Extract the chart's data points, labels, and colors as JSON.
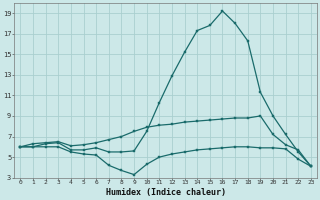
{
  "xlabel": "Humidex (Indice chaleur)",
  "background_color": "#cce8e8",
  "grid_color": "#aacfcf",
  "line_color": "#1a6b6b",
  "x": [
    0,
    1,
    2,
    3,
    4,
    5,
    6,
    7,
    8,
    9,
    10,
    11,
    12,
    13,
    14,
    15,
    16,
    17,
    18,
    19,
    20,
    21,
    22,
    23
  ],
  "line1": [
    6.0,
    6.0,
    6.0,
    6.0,
    5.5,
    5.3,
    5.2,
    4.2,
    3.7,
    3.3,
    4.3,
    5.0,
    5.3,
    5.5,
    5.7,
    5.8,
    5.9,
    6.0,
    6.0,
    5.9,
    5.9,
    5.8,
    4.8,
    4.1
  ],
  "line2": [
    6.0,
    6.3,
    6.4,
    6.5,
    6.1,
    6.2,
    6.4,
    6.7,
    7.0,
    7.5,
    7.9,
    8.1,
    8.2,
    8.4,
    8.5,
    8.6,
    8.7,
    8.8,
    8.8,
    9.0,
    7.2,
    6.2,
    5.7,
    4.1
  ],
  "line3": [
    6.0,
    6.0,
    6.3,
    6.4,
    5.7,
    5.7,
    5.9,
    5.5,
    5.5,
    5.6,
    7.5,
    10.3,
    12.9,
    15.2,
    17.3,
    17.8,
    19.2,
    18.0,
    16.3,
    11.3,
    9.0,
    7.2,
    5.5,
    4.1
  ],
  "ylim": [
    3,
    20
  ],
  "xlim": [
    -0.5,
    23.5
  ],
  "yticks": [
    3,
    5,
    7,
    9,
    11,
    13,
    15,
    17,
    19
  ],
  "xticks": [
    0,
    1,
    2,
    3,
    4,
    5,
    6,
    7,
    8,
    9,
    10,
    11,
    12,
    13,
    14,
    15,
    16,
    17,
    18,
    19,
    20,
    21,
    22,
    23
  ]
}
